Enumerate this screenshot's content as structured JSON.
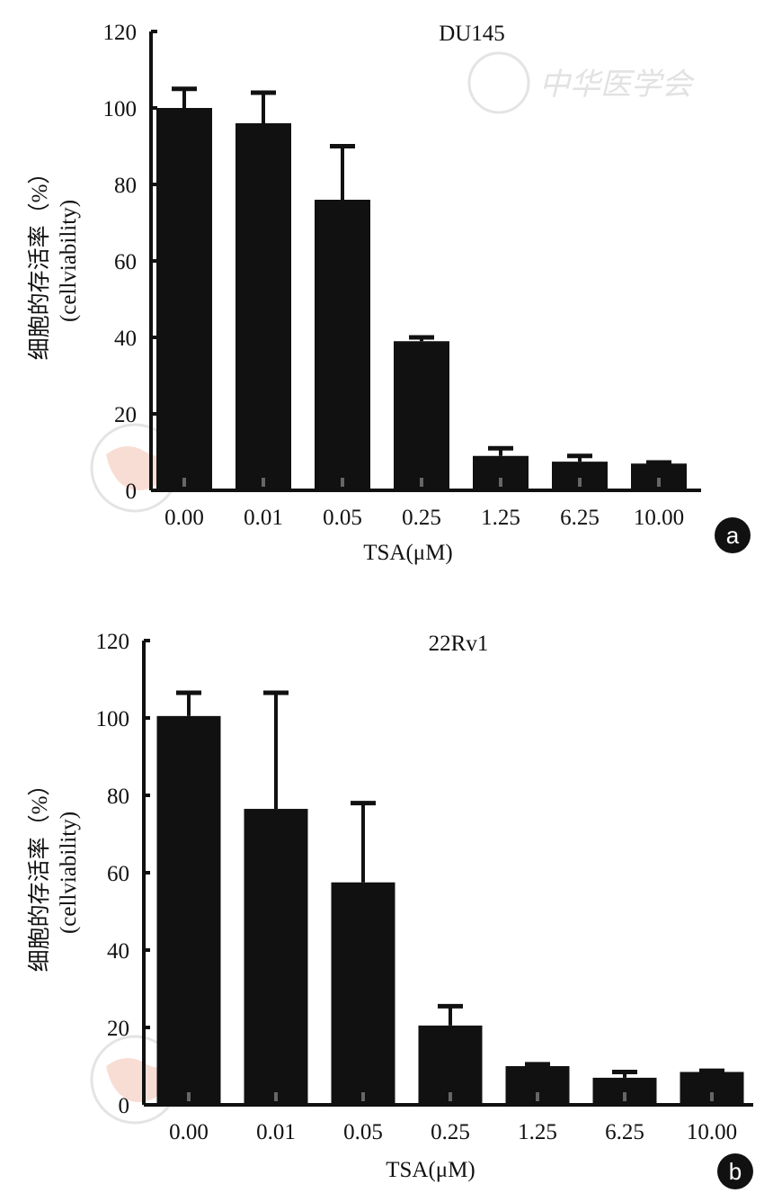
{
  "watermark": {
    "text": "中华医学会"
  },
  "chart_data": [
    {
      "type": "bar",
      "panel": "a",
      "title": "DU145",
      "xlabel": "TSA(μM)",
      "ylabel": [
        "细胞的存活率（%）",
        "(cellviability)"
      ],
      "categories": [
        "0.00",
        "0.01",
        "0.05",
        "0.25",
        "1.25",
        "6.25",
        "10.00"
      ],
      "values": [
        100,
        96,
        76,
        39,
        9,
        7.5,
        7
      ],
      "error_upper": [
        105,
        104,
        90,
        40,
        11,
        9,
        7.3
      ],
      "ylim": [
        0,
        120
      ],
      "yticks": [
        0,
        20,
        40,
        60,
        80,
        100,
        120
      ],
      "grid": false,
      "bar_color": "#111111"
    },
    {
      "type": "bar",
      "panel": "b",
      "title": "22Rv1",
      "xlabel": "TSA(μM)",
      "ylabel": [
        "细胞的存活率（%）",
        "(cellviability)"
      ],
      "categories": [
        "0.00",
        "0.01",
        "0.05",
        "0.25",
        "1.25",
        "6.25",
        "10.00"
      ],
      "values": [
        100.5,
        76.5,
        57.5,
        20.5,
        10,
        7,
        8.5
      ],
      "error_upper": [
        106.5,
        106.5,
        78,
        25.5,
        10.5,
        8.5,
        8.8
      ],
      "ylim": [
        0,
        120
      ],
      "yticks": [
        0,
        20,
        40,
        60,
        80,
        100,
        120
      ],
      "grid": false,
      "bar_color": "#111111"
    }
  ]
}
